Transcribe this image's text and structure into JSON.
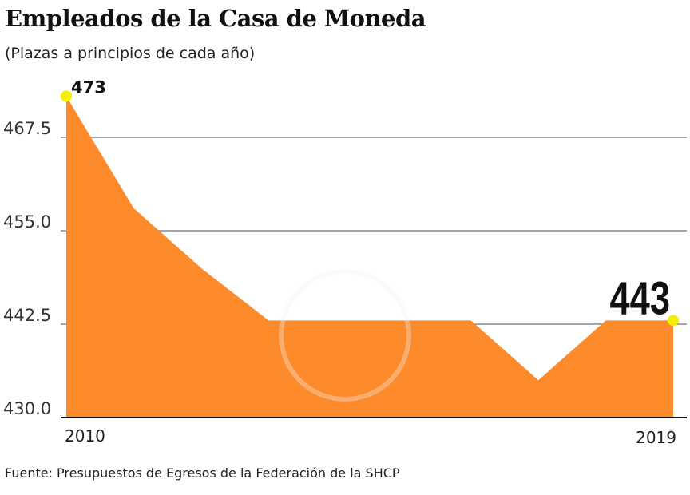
{
  "chart_data": {
    "type": "area",
    "title": "Empleados de la Casa de Moneda",
    "subtitle": "(Plazas a principios de cada año)",
    "source": "Fuente: Presupuestos de Egresos de la Federación de la SHCP",
    "x": [
      2010,
      2011,
      2012,
      2013,
      2014,
      2015,
      2016,
      2017,
      2018,
      2019
    ],
    "values": [
      473,
      458,
      450,
      443,
      443,
      443,
      443,
      435,
      443,
      443
    ],
    "ylim": [
      430,
      475
    ],
    "yticks": [
      "430.0",
      "442.5",
      "455.0",
      "467.5"
    ],
    "ytick_values": [
      430,
      442.5,
      455,
      467.5
    ],
    "xtick_labels": [
      "2010",
      "2019"
    ],
    "annotations": {
      "first": "473",
      "last": "443"
    },
    "grid": true,
    "colors": {
      "fill": "#fd8a2b",
      "marker": "#f5f000",
      "grid": "#888888",
      "axis": "#111111"
    }
  }
}
